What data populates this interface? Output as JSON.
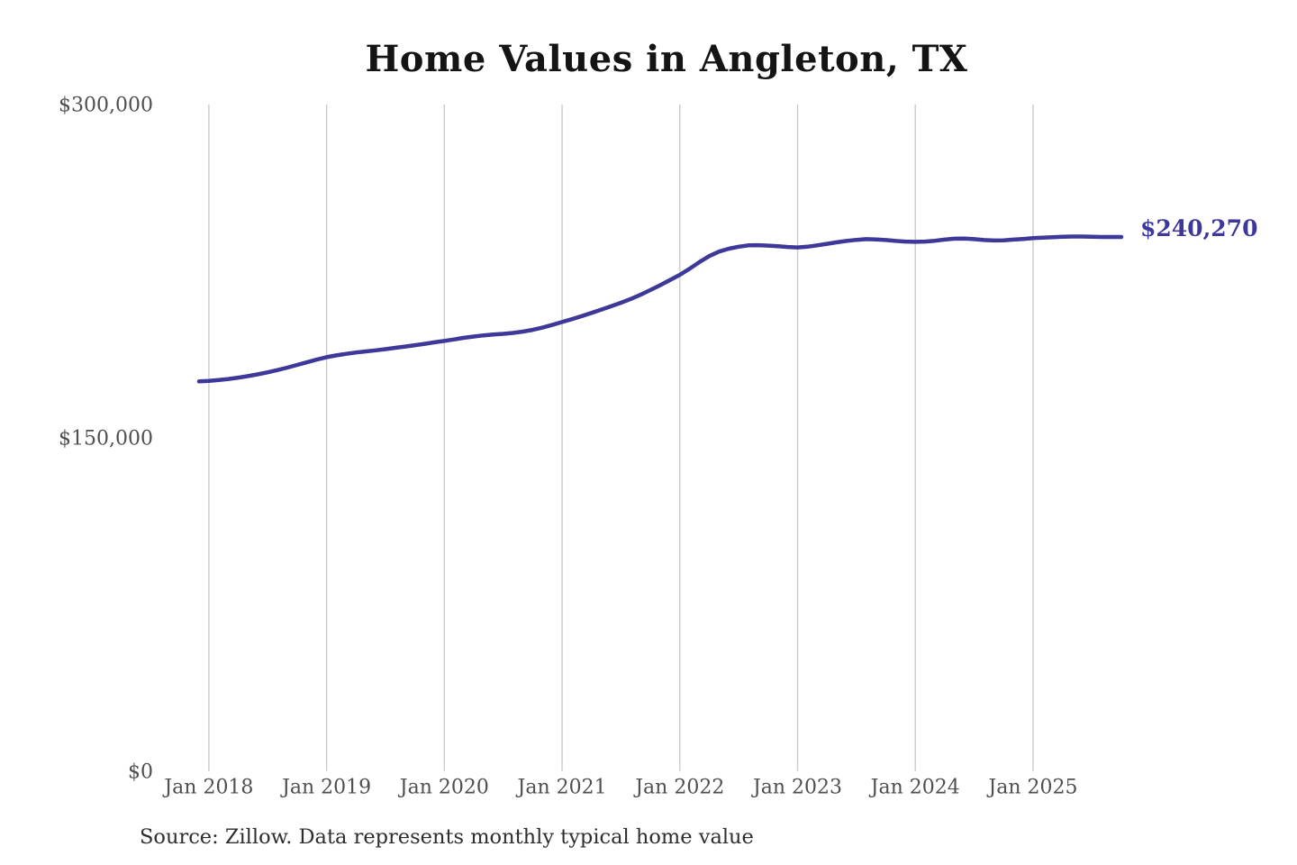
{
  "page": {
    "background": "#ffffff"
  },
  "chart_data": {
    "type": "line",
    "title": "Home Values in Angleton, TX",
    "source": "Source: Zillow. Data represents monthly typical home value",
    "series_name": "Monthly typical home value",
    "end_label": "$240,270",
    "latest_value": 240270,
    "line_color": "#3d3899",
    "gridline_color": "#cbcbcb",
    "tick_label_color": "#4f4f4f",
    "grid": "vertical-only",
    "legend": "none",
    "ylim": [
      0,
      300000
    ],
    "y_ticks": [
      {
        "value": 0,
        "label": "$0"
      },
      {
        "value": 150000,
        "label": "$150,000"
      },
      {
        "value": 300000,
        "label": "$300,000"
      }
    ],
    "x_tick_labels": [
      "Jan 2018",
      "Jan 2019",
      "Jan 2020",
      "Jan 2021",
      "Jan 2022",
      "Jan 2023",
      "Jan 2024",
      "Jan 2025"
    ],
    "x_tick_month_indices": [
      1,
      13,
      25,
      37,
      49,
      61,
      73,
      85
    ],
    "x": [
      "2017-12",
      "2018-01",
      "2018-02",
      "2018-03",
      "2018-04",
      "2018-05",
      "2018-06",
      "2018-07",
      "2018-08",
      "2018-09",
      "2018-10",
      "2018-11",
      "2018-12",
      "2019-01",
      "2019-02",
      "2019-03",
      "2019-04",
      "2019-05",
      "2019-06",
      "2019-07",
      "2019-08",
      "2019-09",
      "2019-10",
      "2019-11",
      "2019-12",
      "2020-01",
      "2020-02",
      "2020-03",
      "2020-04",
      "2020-05",
      "2020-06",
      "2020-07",
      "2020-08",
      "2020-09",
      "2020-10",
      "2020-11",
      "2020-12",
      "2021-01",
      "2021-02",
      "2021-03",
      "2021-04",
      "2021-05",
      "2021-06",
      "2021-07",
      "2021-08",
      "2021-09",
      "2021-10",
      "2021-11",
      "2021-12",
      "2022-01",
      "2022-02",
      "2022-03",
      "2022-04",
      "2022-05",
      "2022-06",
      "2022-07",
      "2022-08",
      "2022-09",
      "2022-10",
      "2022-11",
      "2022-12",
      "2023-01",
      "2023-02",
      "2023-03",
      "2023-04",
      "2023-05",
      "2023-06",
      "2023-07",
      "2023-08",
      "2023-09",
      "2023-10",
      "2023-11",
      "2023-12",
      "2024-01",
      "2024-02",
      "2024-03",
      "2024-04",
      "2024-05",
      "2024-06",
      "2024-07",
      "2024-08",
      "2024-09",
      "2024-10",
      "2024-11",
      "2024-12",
      "2025-01",
      "2025-02",
      "2025-03",
      "2025-04",
      "2025-05",
      "2025-06",
      "2025-07",
      "2025-08",
      "2025-09",
      "2025-10"
    ],
    "values": [
      175300,
      175500,
      175900,
      176400,
      177000,
      177700,
      178500,
      179400,
      180400,
      181500,
      182700,
      183900,
      185100,
      186200,
      187000,
      187700,
      188300,
      188800,
      189300,
      189800,
      190400,
      191000,
      191600,
      192200,
      192900,
      193500,
      194200,
      194900,
      195500,
      196000,
      196400,
      196700,
      197100,
      197700,
      198500,
      199500,
      200700,
      202000,
      203300,
      204700,
      206100,
      207600,
      209100,
      210700,
      212400,
      214300,
      216400,
      218600,
      220900,
      223250,
      226000,
      229000,
      231700,
      233700,
      235000,
      235900,
      236500,
      236600,
      236400,
      236100,
      235800,
      235600,
      235900,
      236500,
      237200,
      237900,
      238500,
      239000,
      239300,
      239200,
      238900,
      238500,
      238200,
      238100,
      238200,
      238600,
      239100,
      239500,
      239600,
      239300,
      238900,
      238700,
      238800,
      239100,
      239400,
      239750,
      240000,
      240200,
      240400,
      240500,
      240500,
      240400,
      240300,
      240300,
      240270
    ]
  }
}
